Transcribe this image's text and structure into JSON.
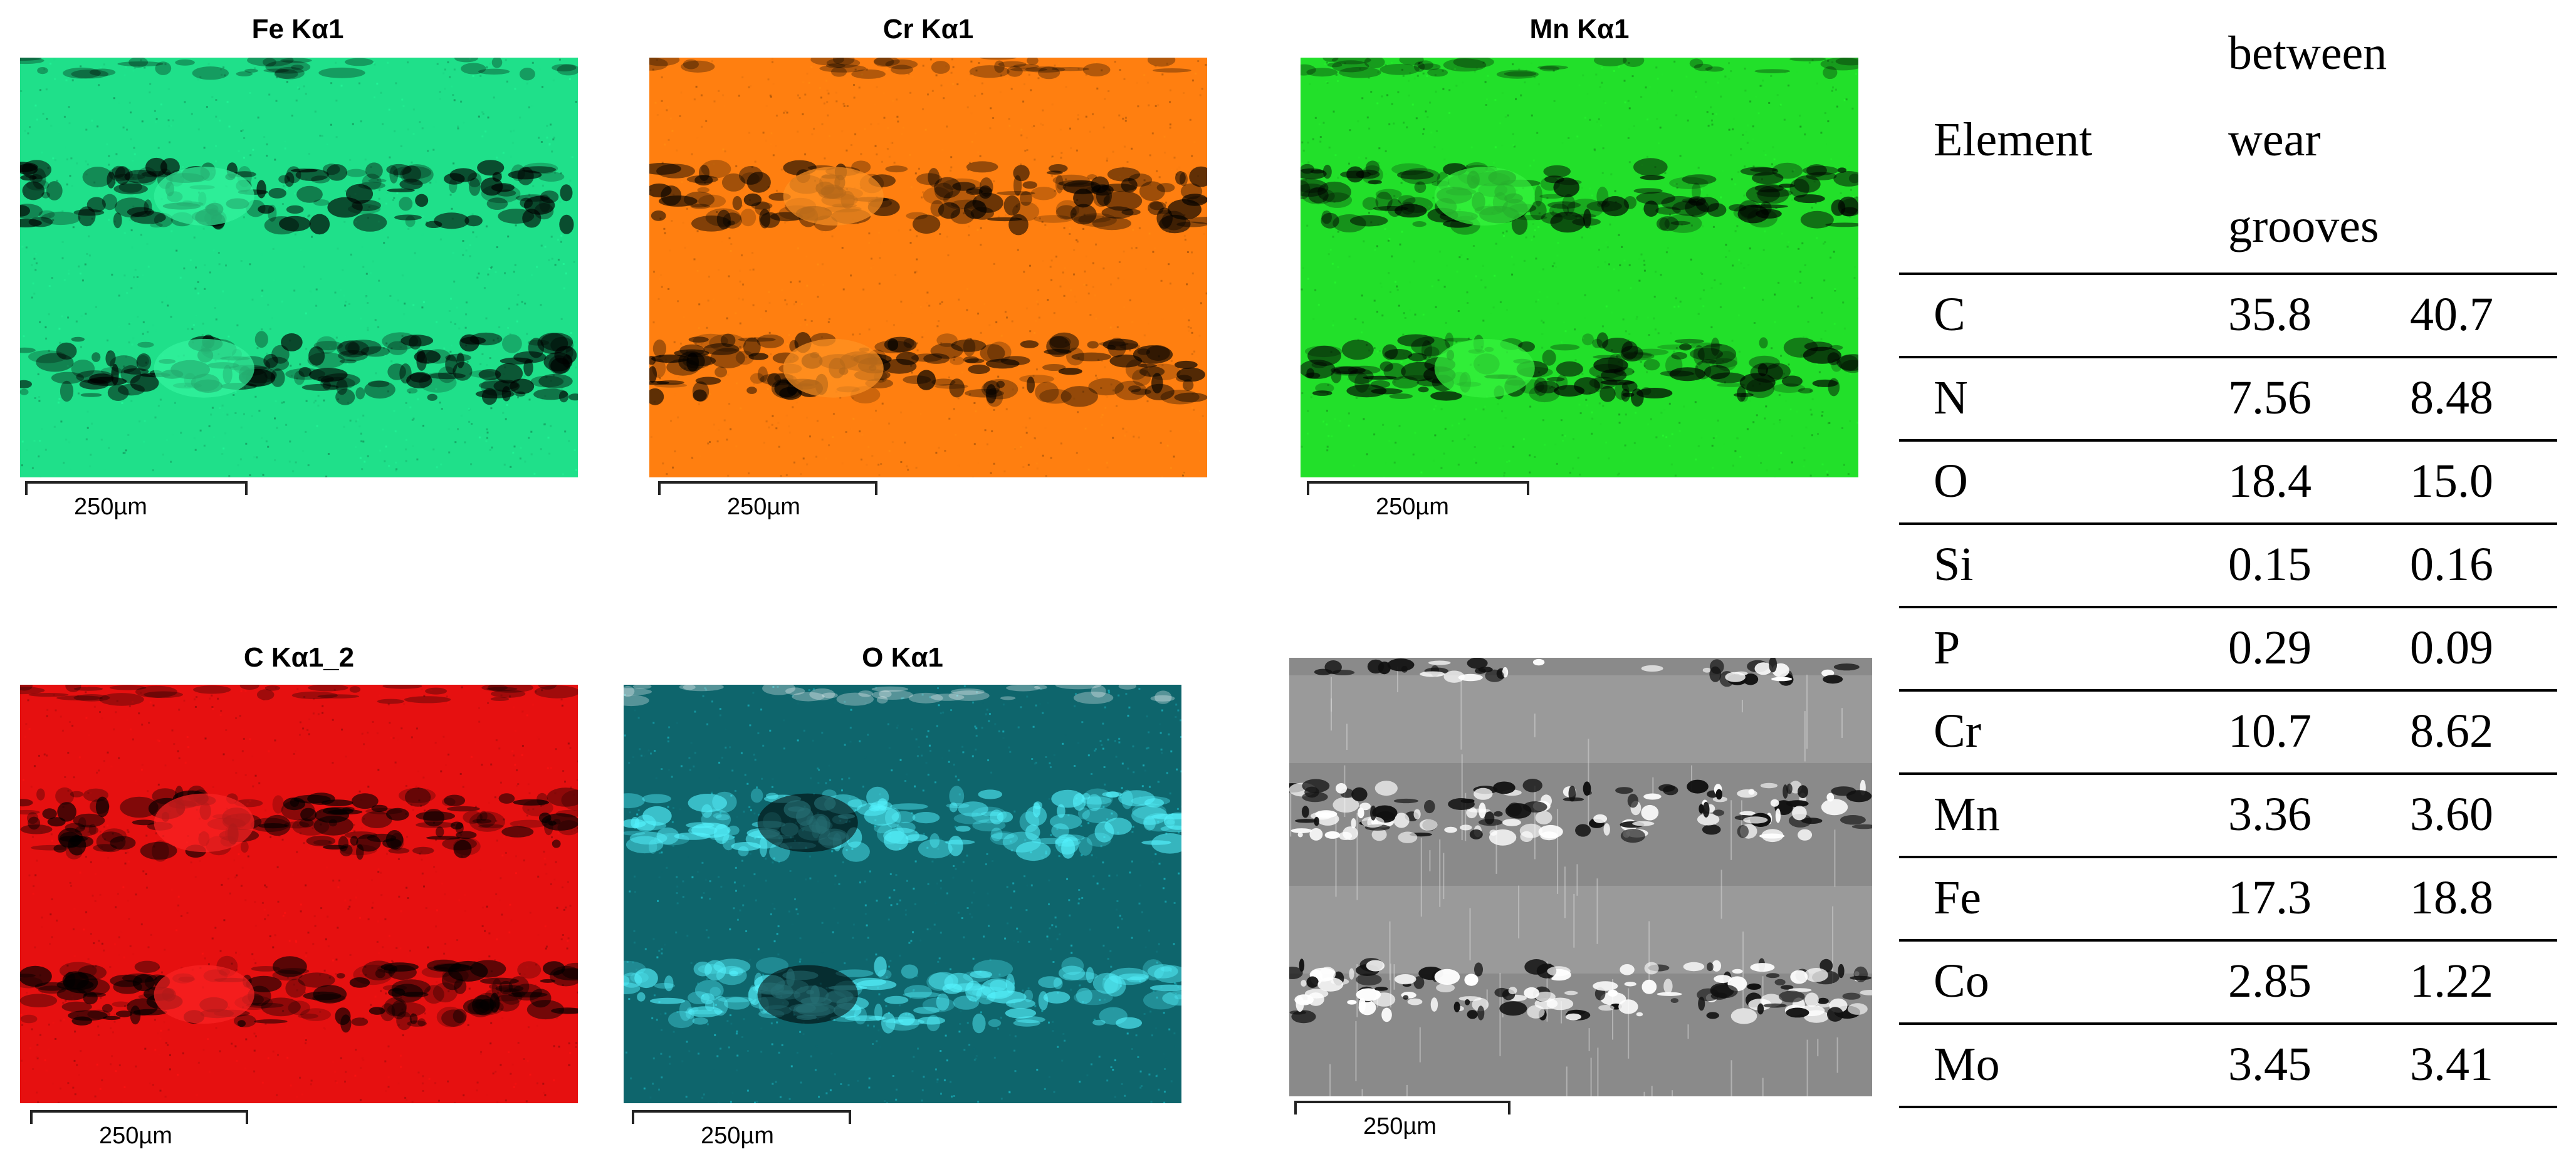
{
  "maps": [
    {
      "title": "Fe Kα1",
      "scale": "250µm",
      "color": "#1fe08a"
    },
    {
      "title": "Cr Kα1",
      "scale": "250µm",
      "color": "#ff7f10"
    },
    {
      "title": "Mn Kα1",
      "scale": "250µm",
      "color": "#22e02a"
    },
    {
      "title": "C Kα1_2",
      "scale": "250µm",
      "color": "#e61010"
    },
    {
      "title": "O Kα1",
      "scale": "250µm",
      "color": "#19b8c4"
    },
    {
      "title": "",
      "scale": "250µm",
      "color": "#8a8a8a"
    }
  ],
  "table": {
    "header": {
      "element": "Element",
      "lines": [
        "between",
        "wear",
        "grooves"
      ]
    },
    "rows": [
      {
        "element": "C",
        "v1": "35.8",
        "v2": "40.7"
      },
      {
        "element": "N",
        "v1": "7.56",
        "v2": "8.48"
      },
      {
        "element": "O",
        "v1": "18.4",
        "v2": "15.0"
      },
      {
        "element": "Si",
        "v1": "0.15",
        "v2": "0.16"
      },
      {
        "element": "P",
        "v1": "0.29",
        "v2": "0.09"
      },
      {
        "element": "Cr",
        "v1": "10.7",
        "v2": "8.62"
      },
      {
        "element": "Mn",
        "v1": "3.36",
        "v2": "3.60"
      },
      {
        "element": "Fe",
        "v1": "17.3",
        "v2": "18.8"
      },
      {
        "element": "Co",
        "v1": "2.85",
        "v2": "1.22"
      },
      {
        "element": "Mo",
        "v1": "3.45",
        "v2": "3.41"
      }
    ]
  }
}
